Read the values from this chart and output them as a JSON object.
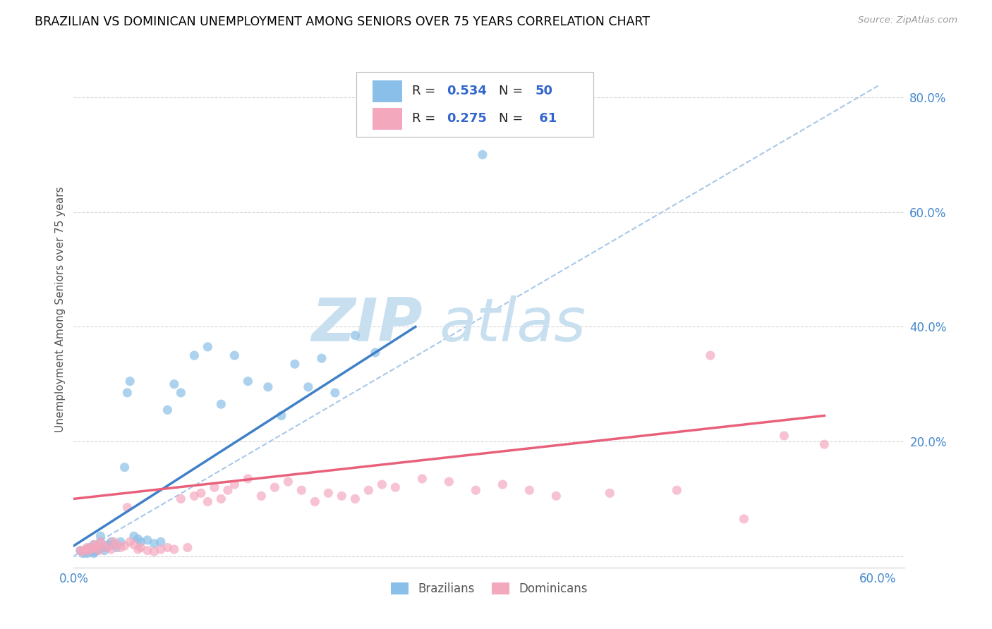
{
  "title": "BRAZILIAN VS DOMINICAN UNEMPLOYMENT AMONG SENIORS OVER 75 YEARS CORRELATION CHART",
  "source": "Source: ZipAtlas.com",
  "ylabel": "Unemployment Among Seniors over 75 years",
  "xlim": [
    0.0,
    0.62
  ],
  "ylim": [
    -0.02,
    0.88
  ],
  "brazil_color": "#89bfe8",
  "dominican_color": "#f4a8be",
  "brazil_line_color": "#4080c8",
  "dominican_line_color": "#e8607a",
  "ref_line_color": "#a8c8e8",
  "watermark_zip": "ZIP",
  "watermark_atlas": "atlas",
  "watermark_color": "#c8dff0",
  "brazil_R": 0.534,
  "brazil_N": 50,
  "dominican_R": 0.275,
  "dominican_N": 61,
  "brazil_line_x0": 0.0,
  "brazil_line_y0": 0.018,
  "brazil_line_x1": 0.255,
  "brazil_line_y1": 0.4,
  "dominican_line_x0": 0.0,
  "dominican_line_y0": 0.1,
  "dominican_line_x1": 0.56,
  "dominican_line_y1": 0.245,
  "ref_line_x0": 0.0,
  "ref_line_y0": 0.0,
  "ref_line_x1": 0.6,
  "ref_line_y1": 0.82,
  "brazil_scatter_x": [
    0.005,
    0.007,
    0.008,
    0.01,
    0.01,
    0.012,
    0.013,
    0.014,
    0.015,
    0.015,
    0.016,
    0.017,
    0.018,
    0.019,
    0.02,
    0.02,
    0.022,
    0.023,
    0.025,
    0.026,
    0.028,
    0.03,
    0.032,
    0.035,
    0.038,
    0.04,
    0.042,
    0.045,
    0.048,
    0.05,
    0.055,
    0.06,
    0.065,
    0.07,
    0.075,
    0.08,
    0.09,
    0.1,
    0.11,
    0.12,
    0.13,
    0.145,
    0.155,
    0.165,
    0.175,
    0.185,
    0.195,
    0.21,
    0.225,
    0.305
  ],
  "brazil_scatter_y": [
    0.01,
    0.005,
    0.008,
    0.012,
    0.005,
    0.015,
    0.008,
    0.01,
    0.02,
    0.005,
    0.008,
    0.01,
    0.012,
    0.018,
    0.035,
    0.025,
    0.015,
    0.01,
    0.015,
    0.02,
    0.025,
    0.02,
    0.015,
    0.025,
    0.155,
    0.285,
    0.305,
    0.035,
    0.03,
    0.025,
    0.028,
    0.022,
    0.025,
    0.255,
    0.3,
    0.285,
    0.35,
    0.365,
    0.265,
    0.35,
    0.305,
    0.295,
    0.245,
    0.335,
    0.295,
    0.345,
    0.285,
    0.385,
    0.355,
    0.7
  ],
  "dominican_scatter_x": [
    0.005,
    0.007,
    0.009,
    0.01,
    0.012,
    0.013,
    0.015,
    0.016,
    0.018,
    0.019,
    0.02,
    0.022,
    0.025,
    0.028,
    0.03,
    0.032,
    0.035,
    0.038,
    0.04,
    0.042,
    0.045,
    0.048,
    0.05,
    0.055,
    0.06,
    0.065,
    0.07,
    0.075,
    0.08,
    0.085,
    0.09,
    0.095,
    0.1,
    0.105,
    0.11,
    0.115,
    0.12,
    0.13,
    0.14,
    0.15,
    0.16,
    0.17,
    0.18,
    0.19,
    0.2,
    0.21,
    0.22,
    0.23,
    0.24,
    0.26,
    0.28,
    0.3,
    0.32,
    0.34,
    0.36,
    0.4,
    0.45,
    0.475,
    0.5,
    0.53,
    0.56
  ],
  "dominican_scatter_y": [
    0.01,
    0.008,
    0.012,
    0.015,
    0.01,
    0.012,
    0.02,
    0.015,
    0.018,
    0.01,
    0.025,
    0.02,
    0.015,
    0.012,
    0.025,
    0.02,
    0.015,
    0.018,
    0.085,
    0.025,
    0.02,
    0.012,
    0.015,
    0.01,
    0.008,
    0.012,
    0.015,
    0.012,
    0.1,
    0.015,
    0.105,
    0.11,
    0.095,
    0.12,
    0.1,
    0.115,
    0.125,
    0.135,
    0.105,
    0.12,
    0.13,
    0.115,
    0.095,
    0.11,
    0.105,
    0.1,
    0.115,
    0.125,
    0.12,
    0.135,
    0.13,
    0.115,
    0.125,
    0.115,
    0.105,
    0.11,
    0.115,
    0.35,
    0.065,
    0.21,
    0.195
  ]
}
